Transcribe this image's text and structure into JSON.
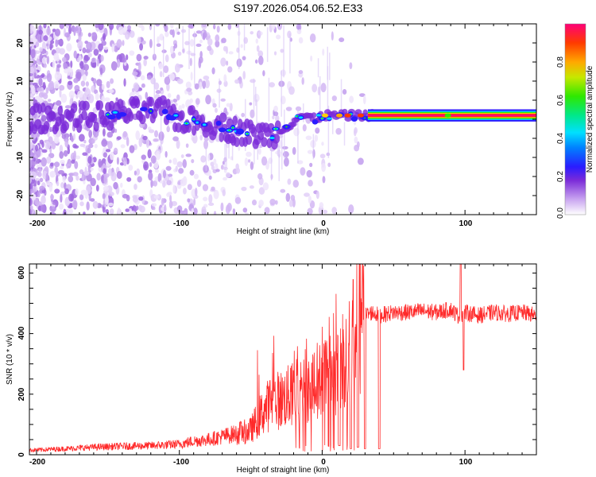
{
  "title": "S197.2026.054.06.52.E33",
  "chart_data": [
    {
      "type": "heatmap",
      "xlabel": "Height of straight line (km)",
      "ylabel": "Frequency (Hz)",
      "xlim": [
        -205,
        150
      ],
      "ylim": [
        -25,
        25
      ],
      "xticks": [
        "-200",
        "-100",
        "0",
        "100"
      ],
      "yticks": [
        "-20",
        "-10",
        "0",
        "10",
        "20"
      ],
      "colorbar": {
        "label": "Normalized spectral amplitude",
        "ticks": [
          "0.0",
          "0.2",
          "0.4",
          "0.6",
          "0.8"
        ],
        "range": [
          0,
          1
        ]
      },
      "ridge": {
        "x": [
          -205,
          -150,
          -130,
          -110,
          -100,
          -80,
          -60,
          -50,
          -40,
          -35,
          -25,
          -15,
          -5,
          0,
          10,
          20,
          30,
          40,
          150
        ],
        "freq": [
          0,
          1,
          2,
          2,
          0,
          -1,
          -3,
          -4,
          -4,
          -4,
          -2,
          1,
          0,
          1,
          1,
          1,
          1,
          1,
          1
        ]
      }
    },
    {
      "type": "line",
      "xlabel": "Height of straight line (km)",
      "ylabel": "SNR (10 * v/v)",
      "xlim": [
        -205,
        150
      ],
      "ylim": [
        0,
        630
      ],
      "xticks": [
        "-200",
        "-100",
        "0",
        "100"
      ],
      "yticks": [
        "0",
        "200",
        "400",
        "600"
      ],
      "color": "#ff2a2a",
      "series": {
        "name": "SNR",
        "x": [
          -205,
          -180,
          -160,
          -140,
          -120,
          -100,
          -90,
          -80,
          -70,
          -60,
          -50,
          -45,
          -40,
          -35,
          -30,
          -25,
          -20,
          -15,
          -10,
          -5,
          0,
          5,
          10,
          15,
          20,
          22,
          25,
          28,
          30,
          35,
          40,
          45,
          50,
          60,
          70,
          80,
          90,
          95,
          100,
          110,
          120,
          130,
          140,
          150
        ],
        "y": [
          15,
          20,
          25,
          28,
          30,
          35,
          45,
          50,
          60,
          70,
          80,
          120,
          150,
          180,
          180,
          190,
          200,
          200,
          220,
          240,
          260,
          280,
          290,
          300,
          330,
          400,
          420,
          440,
          460,
          470,
          460,
          465,
          470,
          470,
          475,
          470,
          480,
          460,
          470,
          460,
          470,
          465,
          470,
          460
        ],
        "dips": [
          [
            12,
            30
          ],
          [
            20,
            20
          ],
          [
            25,
            25
          ],
          [
            30,
            20
          ],
          [
            40,
            20
          ]
        ],
        "spikes": [
          [
            97,
            630
          ],
          [
            99,
            280
          ]
        ]
      }
    }
  ]
}
